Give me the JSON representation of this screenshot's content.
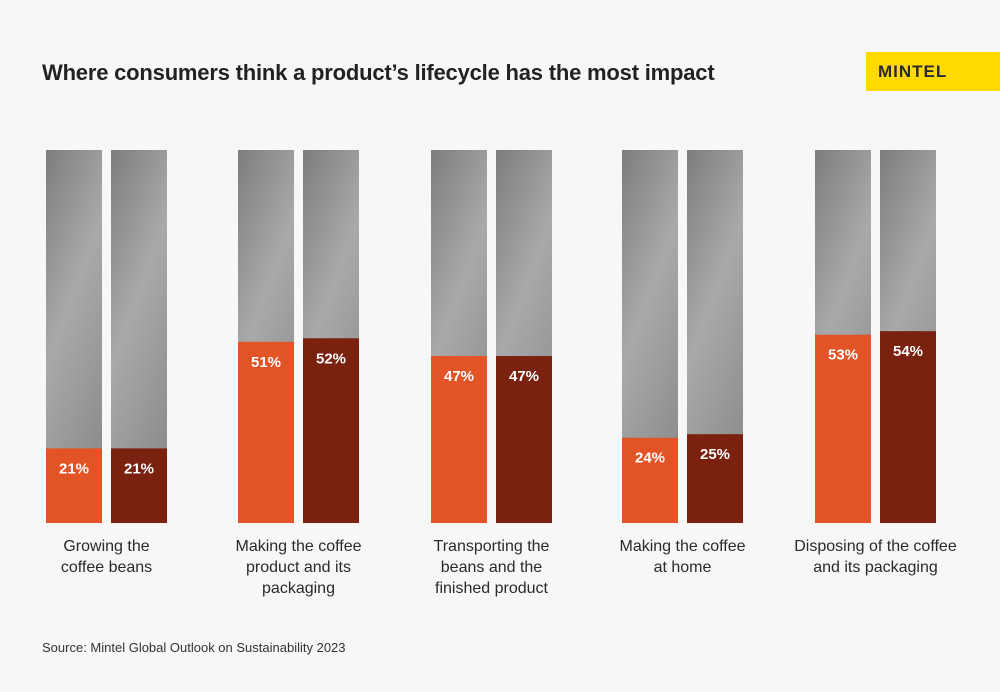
{
  "chart_data": {
    "type": "bar",
    "title": "Where consumers think a product’s lifecycle has the most impact",
    "categories": [
      "Growing the\ncoffee beans",
      "Making the coffee\nproduct and its\npackaging",
      "Transporting the\nbeans and the\nfinished product",
      "Making the coffee\nat home",
      "Disposing of the coffee\nand its packaging"
    ],
    "series": [
      {
        "values": [
          21,
          51,
          47,
          24,
          53
        ],
        "color": "#e25425"
      },
      {
        "values": [
          21,
          52,
          47,
          25,
          54
        ],
        "color": "#7a2110"
      }
    ],
    "value_format": "%",
    "ylim": [
      0,
      105
    ],
    "grid": false,
    "legend": "none",
    "background_images": [
      "coffee-cherries",
      "roasted-beans",
      "foil-packaging",
      "pour-over-brewing",
      "coffee-capsules"
    ]
  },
  "brand": {
    "logo_text": "MINTEL",
    "logo_color": "#ffd900"
  },
  "source": "Source: Mintel Global Outlook on Sustainability 2023"
}
